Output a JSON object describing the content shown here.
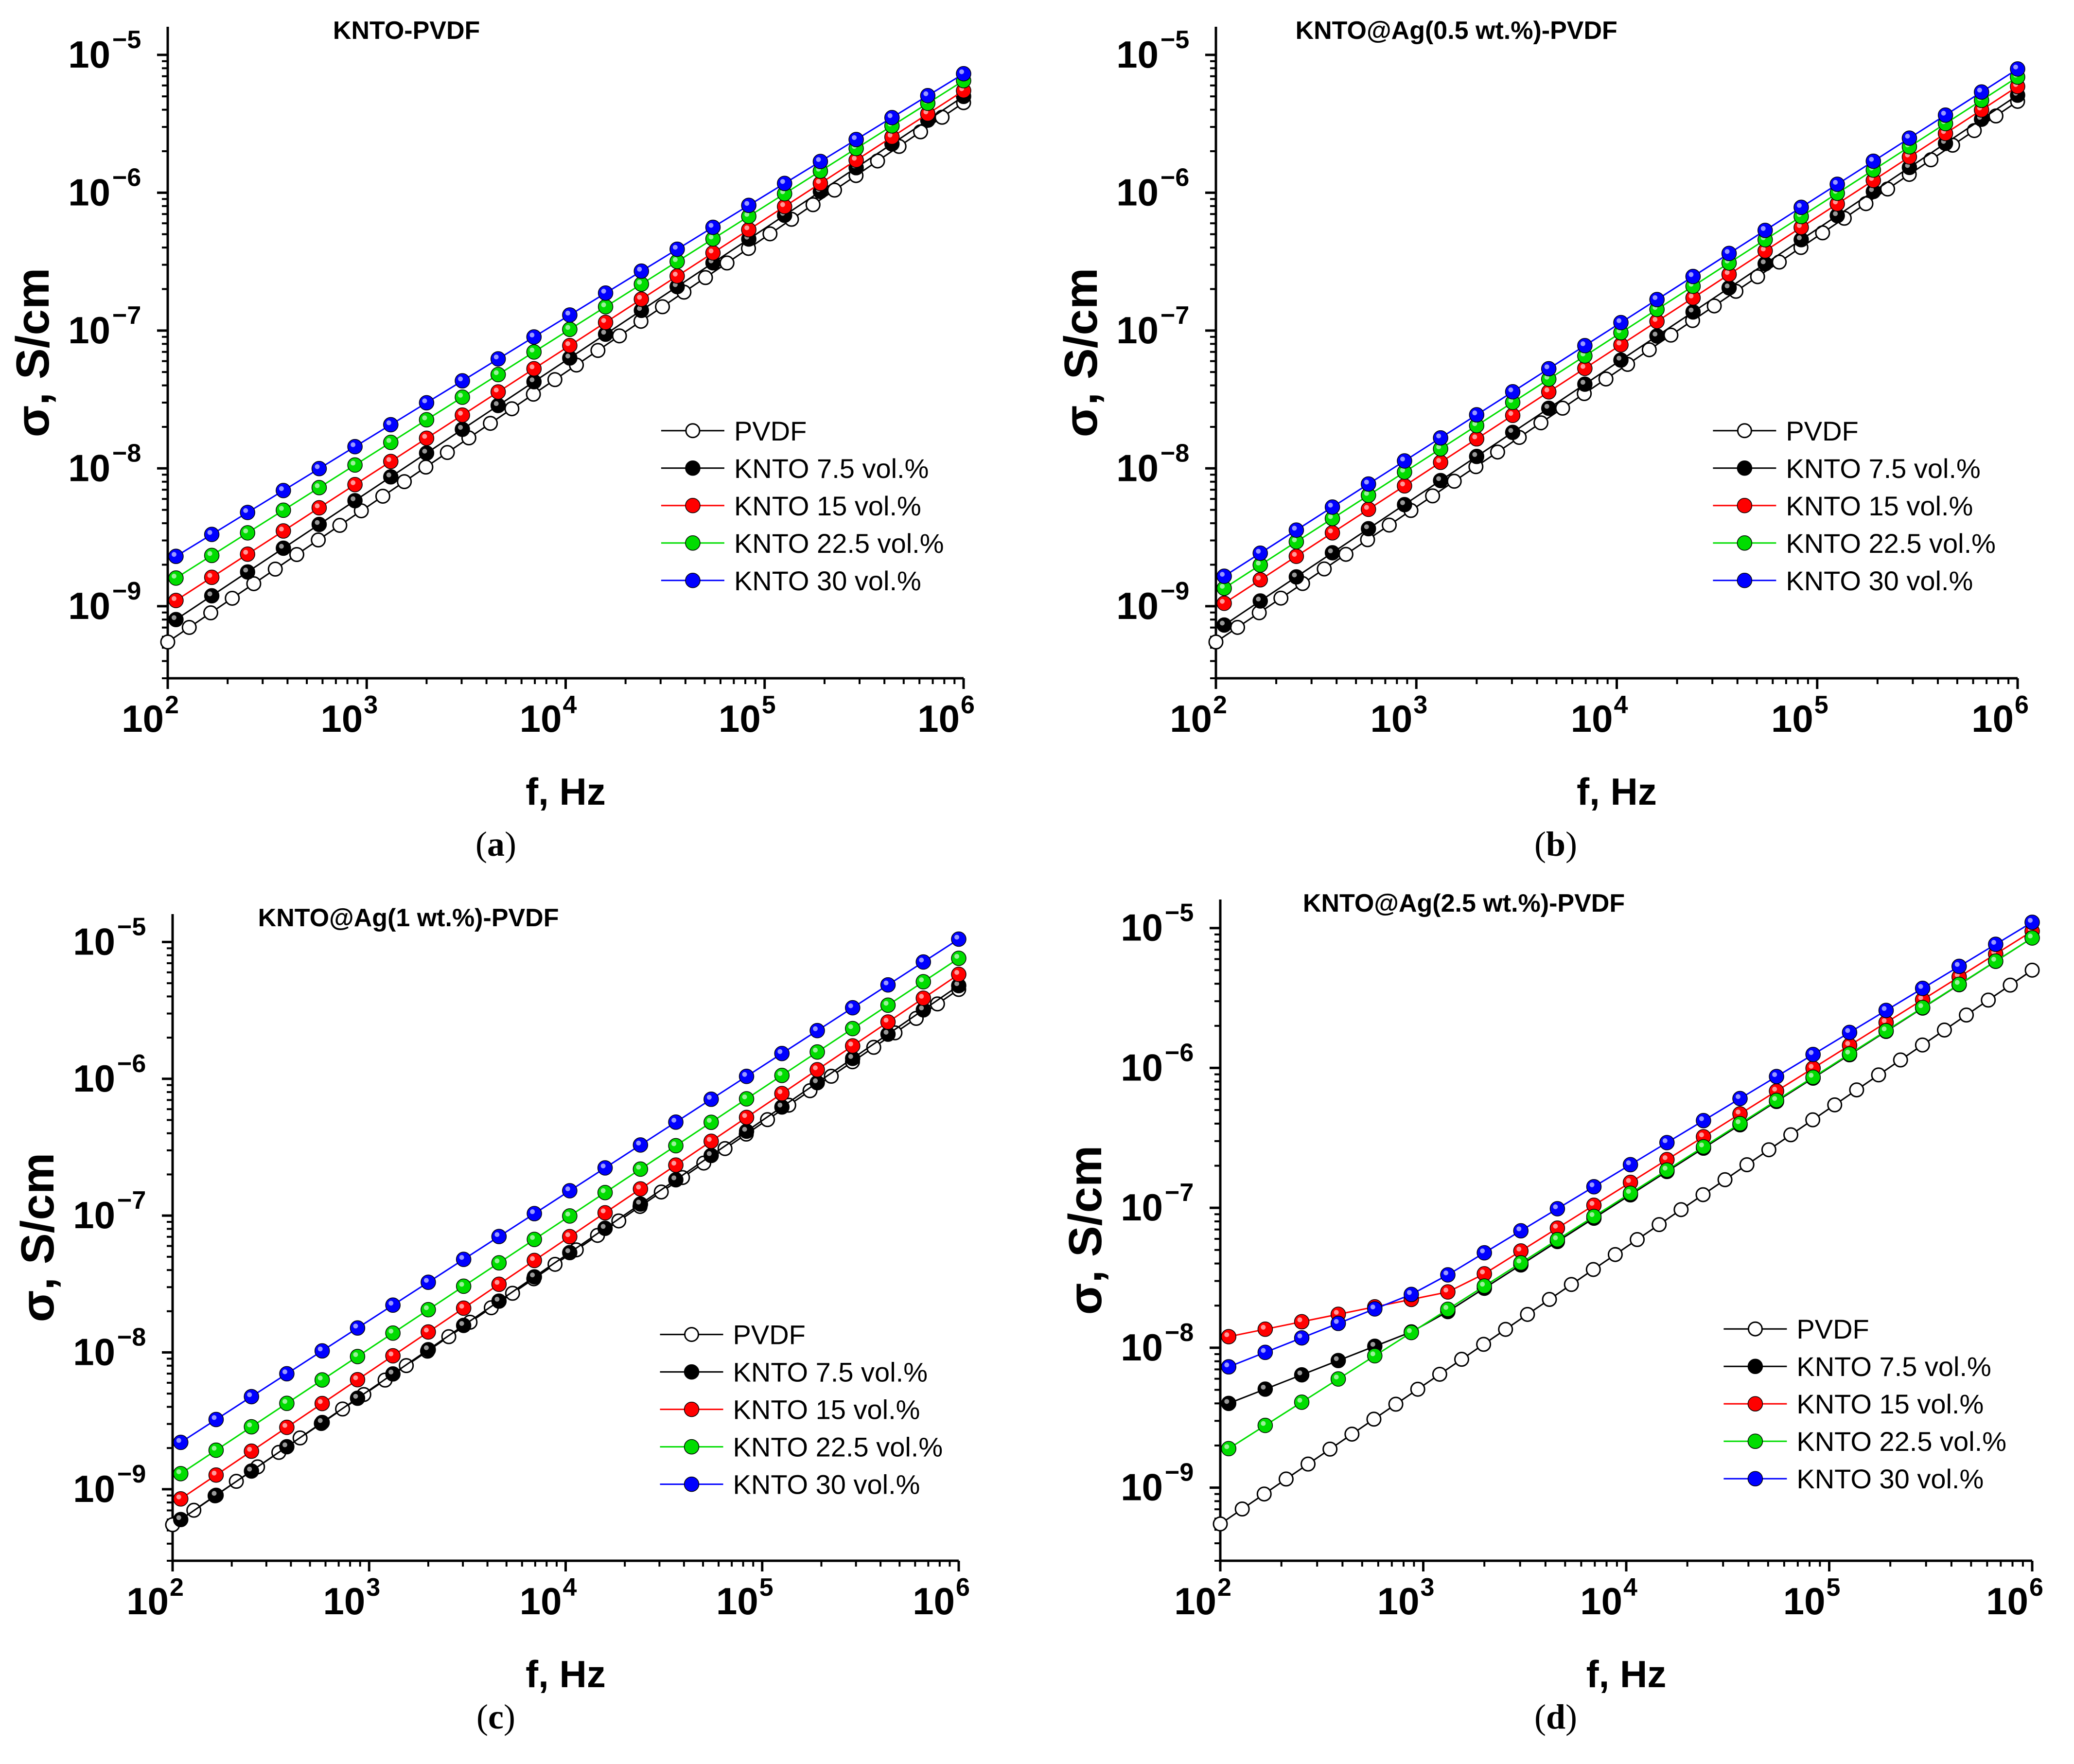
{
  "chart_data": [
    {
      "type": "scatter",
      "panel_label": "a",
      "title": "KNTO-PVDF",
      "xlabel": "f, Hz",
      "ylabel": "σ, S/cm",
      "xscale": "log",
      "yscale": "log",
      "xlim": [
        100,
        1000000
      ],
      "ylim": [
        3e-10,
        1.6e-05
      ],
      "x_ticks": [
        {
          "base": "10",
          "exp": "2"
        },
        {
          "base": "10",
          "exp": "3"
        },
        {
          "base": "10",
          "exp": "4"
        },
        {
          "base": "10",
          "exp": "5"
        },
        {
          "base": "10",
          "exp": "6"
        }
      ],
      "y_ticks": [
        {
          "base": "10",
          "exp": "−9"
        },
        {
          "base": "10",
          "exp": "−8"
        },
        {
          "base": "10",
          "exp": "−7"
        },
        {
          "base": "10",
          "exp": "−6"
        },
        {
          "base": "10",
          "exp": "−5"
        }
      ],
      "legend_position": "right",
      "series": [
        {
          "name": "PVDF",
          "color": "#000000",
          "fill": "none",
          "x_range": [
            100,
            1000000
          ],
          "points": 38,
          "y_start": 5.5e-10,
          "y_end": 4.5e-06
        },
        {
          "name": "KNTO 7.5 vol.%",
          "color": "#000000",
          "fill": "#000000",
          "x_range": [
            110,
            1000000
          ],
          "points": 23,
          "y_start": 8e-10,
          "y_end": 5e-06
        },
        {
          "name": "KNTO 15 vol.%",
          "color": "#ff0000",
          "fill": "#ff0000",
          "x_range": [
            110,
            1000000
          ],
          "points": 23,
          "y_start": 1.1e-09,
          "y_end": 5.5e-06
        },
        {
          "name": "KNTO 22.5 vol.%",
          "color": "#00dd00",
          "fill": "#00dd00",
          "x_range": [
            110,
            1000000
          ],
          "points": 23,
          "y_start": 1.6e-09,
          "y_end": 6.5e-06
        },
        {
          "name": "KNTO 30 vol.%",
          "color": "#0000ff",
          "fill": "#0000ff",
          "x_range": [
            110,
            1000000
          ],
          "points": 23,
          "y_start": 2.3e-09,
          "y_end": 7.3e-06
        }
      ]
    },
    {
      "type": "scatter",
      "panel_label": "b",
      "title": "KNTO@Ag(0.5 wt.%)-PVDF",
      "xlabel": "f, Hz",
      "ylabel": "σ, S/cm",
      "xscale": "log",
      "yscale": "log",
      "xlim": [
        100,
        1000000
      ],
      "ylim": [
        3e-10,
        1.6e-05
      ],
      "x_ticks": [
        {
          "base": "10",
          "exp": "2"
        },
        {
          "base": "10",
          "exp": "3"
        },
        {
          "base": "10",
          "exp": "4"
        },
        {
          "base": "10",
          "exp": "5"
        },
        {
          "base": "10",
          "exp": "6"
        }
      ],
      "y_ticks": [
        {
          "base": "10",
          "exp": "−9"
        },
        {
          "base": "10",
          "exp": "−8"
        },
        {
          "base": "10",
          "exp": "−7"
        },
        {
          "base": "10",
          "exp": "−6"
        },
        {
          "base": "10",
          "exp": "−5"
        }
      ],
      "legend_position": "right",
      "series": [
        {
          "name": "PVDF",
          "color": "#000000",
          "fill": "none",
          "x_range": [
            100,
            1000000
          ],
          "points": 38,
          "y_start": 5.5e-10,
          "y_end": 4.6e-06
        },
        {
          "name": "KNTO 7.5 vol.%",
          "color": "#000000",
          "fill": "#000000",
          "x_range": [
            110,
            1000000
          ],
          "points": 23,
          "y_start": 7.3e-10,
          "y_end": 5.1e-06
        },
        {
          "name": "KNTO 15 vol.%",
          "color": "#ff0000",
          "fill": "#ff0000",
          "x_range": [
            110,
            1000000
          ],
          "points": 23,
          "y_start": 1.05e-09,
          "y_end": 5.9e-06
        },
        {
          "name": "KNTO 22.5 vol.%",
          "color": "#00dd00",
          "fill": "#00dd00",
          "x_range": [
            110,
            1000000
          ],
          "points": 23,
          "y_start": 1.35e-09,
          "y_end": 6.9e-06
        },
        {
          "name": "KNTO 30 vol.%",
          "color": "#0000ff",
          "fill": "#0000ff",
          "x_range": [
            110,
            1000000
          ],
          "points": 23,
          "y_start": 1.65e-09,
          "y_end": 7.9e-06
        }
      ]
    },
    {
      "type": "scatter",
      "panel_label": "c",
      "title": "KNTO@Ag(1 wt.%)-PVDF",
      "xlabel": "f, Hz",
      "ylabel": "σ, S/cm",
      "xscale": "log",
      "yscale": "log",
      "xlim": [
        100,
        1000000
      ],
      "ylim": [
        3e-10,
        1.6e-05
      ],
      "x_ticks": [
        {
          "base": "10",
          "exp": "2"
        },
        {
          "base": "10",
          "exp": "3"
        },
        {
          "base": "10",
          "exp": "4"
        },
        {
          "base": "10",
          "exp": "5"
        },
        {
          "base": "10",
          "exp": "6"
        }
      ],
      "y_ticks": [
        {
          "base": "10",
          "exp": "−9"
        },
        {
          "base": "10",
          "exp": "−8"
        },
        {
          "base": "10",
          "exp": "−7"
        },
        {
          "base": "10",
          "exp": "−6"
        },
        {
          "base": "10",
          "exp": "−5"
        }
      ],
      "legend_position": "right",
      "series": [
        {
          "name": "PVDF",
          "color": "#000000",
          "fill": "none",
          "x_range": [
            100,
            1000000
          ],
          "points": 38,
          "y_start": 5.5e-10,
          "y_end": 4.5e-06
        },
        {
          "name": "KNTO 7.5 vol.%",
          "color": "#000000",
          "fill": "#000000",
          "x_range": [
            110,
            1000000
          ],
          "points": 23,
          "y_start": 6e-10,
          "y_end": 4.8e-06
        },
        {
          "name": "KNTO 15 vol.%",
          "color": "#ff0000",
          "fill": "#ff0000",
          "x_range": [
            110,
            1000000
          ],
          "points": 23,
          "y_start": 8.5e-10,
          "y_end": 5.8e-06
        },
        {
          "name": "KNTO 22.5 vol.%",
          "color": "#00dd00",
          "fill": "#00dd00",
          "x_range": [
            110,
            1000000
          ],
          "points": 23,
          "y_start": 1.3e-09,
          "y_end": 7.6e-06
        },
        {
          "name": "KNTO 30 vol.%",
          "color": "#0000ff",
          "fill": "#0000ff",
          "x_range": [
            110,
            1000000
          ],
          "points": 23,
          "y_start": 2.2e-09,
          "y_end": 1.05e-05
        }
      ]
    },
    {
      "type": "scatter",
      "panel_label": "d",
      "title": "KNTO@Ag(2.5 wt.%)-PVDF",
      "xlabel": "f, Hz",
      "ylabel": "σ, S/cm",
      "xscale": "log",
      "yscale": "log",
      "xlim": [
        100,
        1000000
      ],
      "ylim": [
        3e-10,
        1.6e-05
      ],
      "x_ticks": [
        {
          "base": "10",
          "exp": "2"
        },
        {
          "base": "10",
          "exp": "3"
        },
        {
          "base": "10",
          "exp": "4"
        },
        {
          "base": "10",
          "exp": "5"
        },
        {
          "base": "10",
          "exp": "6"
        }
      ],
      "y_ticks": [
        {
          "base": "10",
          "exp": "−9"
        },
        {
          "base": "10",
          "exp": "−8"
        },
        {
          "base": "10",
          "exp": "−7"
        },
        {
          "base": "10",
          "exp": "−6"
        },
        {
          "base": "10",
          "exp": "−5"
        }
      ],
      "legend_position": "right",
      "series": [
        {
          "name": "PVDF",
          "color": "#000000",
          "fill": "none",
          "x_range": [
            100,
            1000000
          ],
          "points": 38,
          "y_start": 5.5e-10,
          "y_end": 5e-06
        },
        {
          "name": "KNTO 7.5 vol.%",
          "color": "#000000",
          "fill": "#000000",
          "x_range": [
            110,
            1000000
          ],
          "points": 23,
          "knee": 1000,
          "y_start": 4e-09,
          "y_knee": 1.4e-08,
          "y_end": 8.5e-06
        },
        {
          "name": "KNTO 15 vol.%",
          "color": "#ff0000",
          "fill": "#ff0000",
          "x_range": [
            110,
            1000000
          ],
          "points": 23,
          "knee": 1500,
          "y_start": 1.2e-08,
          "y_knee": 2.6e-08,
          "y_end": 9.5e-06
        },
        {
          "name": "KNTO 22.5 vol.%",
          "color": "#00dd00",
          "fill": "#00dd00",
          "x_range": [
            110,
            1000000
          ],
          "points": 23,
          "y_start": 1.9e-09,
          "y_end": 8.5e-06
        },
        {
          "name": "KNTO 30 vol.%",
          "color": "#0000ff",
          "fill": "#0000ff",
          "x_range": [
            110,
            1000000
          ],
          "points": 23,
          "knee": 1000,
          "y_start": 7.3e-09,
          "y_knee": 2.6e-08,
          "y_end": 1.1e-05
        }
      ]
    }
  ]
}
